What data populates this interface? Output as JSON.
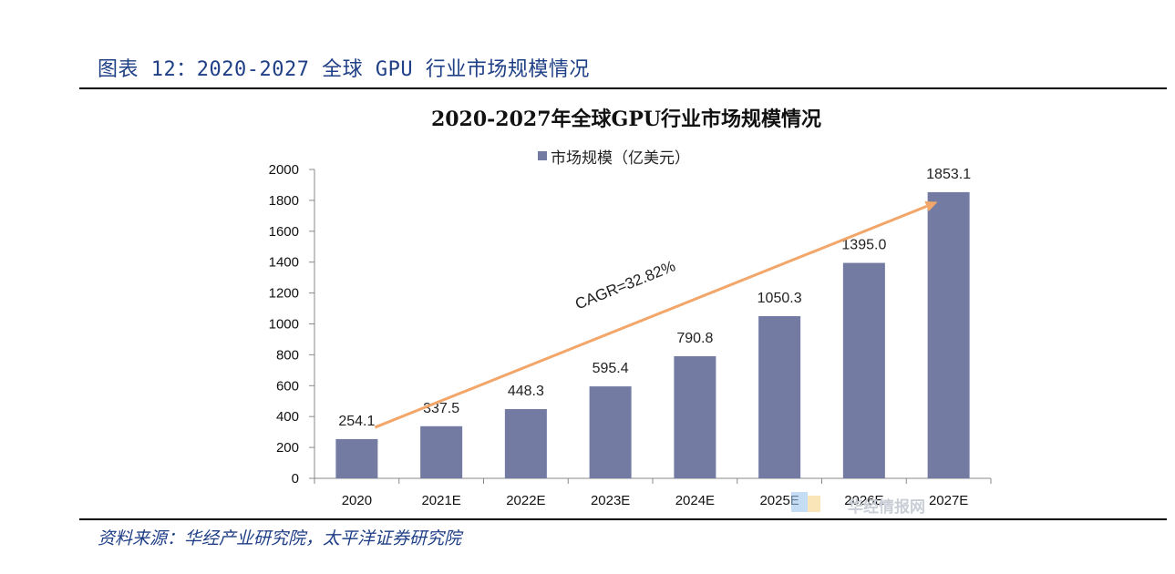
{
  "header": {
    "caption": "图表 12：2020-2027 全球 GPU 行业市场规模情况"
  },
  "footer": {
    "source": "资料来源：华经产业研究院，太平洋证券研究院"
  },
  "watermark": {
    "text": "华经情报网"
  },
  "chart_data": {
    "type": "bar",
    "title": "2020-2027年全球GPU行业市场规模情况",
    "legend": {
      "label": "市场规模（亿美元）",
      "position": "top-center"
    },
    "categories": [
      "2020",
      "2021E",
      "2022E",
      "2023E",
      "2024E",
      "2025E",
      "2026E",
      "2027E"
    ],
    "series": [
      {
        "name": "市场规模（亿美元）",
        "values": [
          254.1,
          337.5,
          448.3,
          595.4,
          790.8,
          1050.3,
          1395.0,
          1853.1
        ]
      }
    ],
    "value_labels": [
      "254.1",
      "337.5",
      "448.3",
      "595.4",
      "790.8",
      "1050.3",
      "1395.0",
      "1853.1"
    ],
    "ylim": [
      0,
      2000
    ],
    "yticks": [
      0,
      200,
      400,
      600,
      800,
      1000,
      1200,
      1400,
      1600,
      1800,
      2000
    ],
    "xlabel": "",
    "ylabel": "",
    "grid": false,
    "annotation": {
      "text": "CAGR=32.82%",
      "arrow_from": [
        "2020",
        330
      ],
      "arrow_to": [
        "2027E",
        1790
      ]
    },
    "colors": {
      "bar": "#737ba3",
      "arrow": "#f2a66a",
      "axis": "#888888"
    }
  }
}
